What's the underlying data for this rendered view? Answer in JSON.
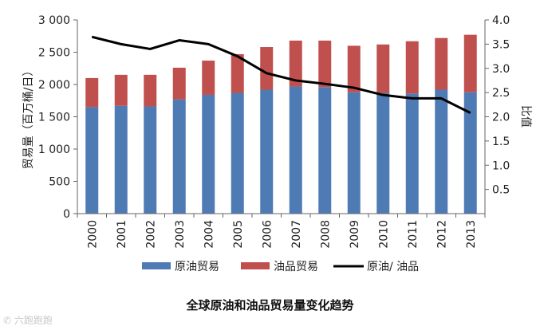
{
  "chart_data": {
    "type": "bar",
    "categories": [
      "2000",
      "2001",
      "2002",
      "2003",
      "2004",
      "2005",
      "2006",
      "2007",
      "2008",
      "2009",
      "2010",
      "2011",
      "2012",
      "2013"
    ],
    "stacked": true,
    "series": [
      {
        "name": "原油贸易",
        "type": "bar",
        "axis": "left",
        "color": "#4f7bb5",
        "values": [
          1650,
          1670,
          1660,
          1770,
          1840,
          1870,
          1920,
          1970,
          1960,
          1880,
          1870,
          1860,
          1920,
          1880
        ]
      },
      {
        "name": "油品贸易",
        "type": "bar",
        "axis": "left",
        "color": "#c0504d",
        "values": [
          450,
          480,
          490,
          490,
          530,
          600,
          660,
          710,
          720,
          720,
          750,
          810,
          800,
          890
        ]
      },
      {
        "name": "原油/ 油品",
        "type": "line",
        "axis": "right",
        "color": "#000000",
        "values": [
          3.65,
          3.5,
          3.4,
          3.58,
          3.5,
          3.25,
          2.9,
          2.75,
          2.68,
          2.6,
          2.45,
          2.38,
          2.38,
          2.08
        ]
      }
    ],
    "ylabel": "贸易量（百万桶/日）",
    "y2label": "比值",
    "ylim": [
      0,
      3000
    ],
    "y2lim": [
      0,
      4.0
    ],
    "yticks": [
      "0",
      "500",
      "1 000",
      "1 500",
      "2 000",
      "2 500",
      "3 000"
    ],
    "y2ticks": [
      "0.5",
      "1.0",
      "1.5",
      "2.0",
      "2.5",
      "3.0",
      "3.5",
      "4.0"
    ],
    "grid": false,
    "legend": "bottom",
    "caption": "全球原油和油品贸易量变化趋势"
  },
  "watermark": "六跑跑跑"
}
